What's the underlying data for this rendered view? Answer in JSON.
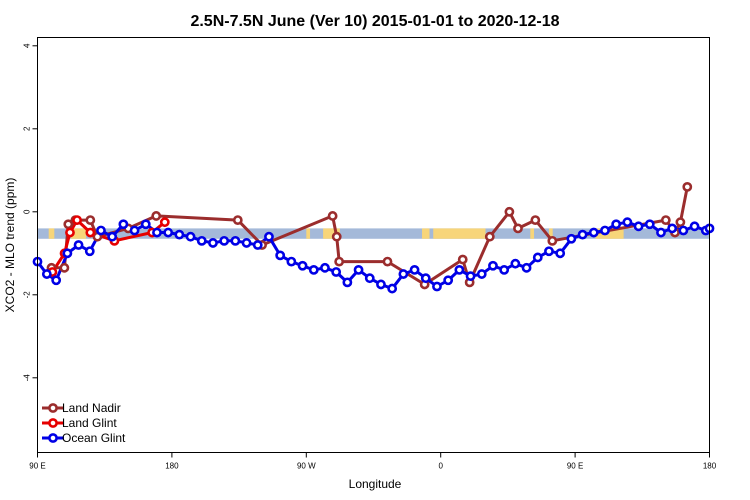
{
  "chart_data": {
    "type": "line",
    "title": "2.5N-7.5N June (Ver 10)   2015-01-01 to 2020-12-18",
    "xlabel": "Longitude",
    "ylabel": "XCO2 - MLO trend (ppm)",
    "xlim": [
      90,
      450
    ],
    "ylim": [
      -5.8,
      4.2
    ],
    "x_ticks": [
      {
        "value": 90,
        "label": "90 E"
      },
      {
        "value": 162,
        "label": "180"
      },
      {
        "value": 234,
        "label": "90 W"
      },
      {
        "value": 306,
        "label": "0"
      },
      {
        "value": 378,
        "label": "90 E"
      },
      {
        "value": 450,
        "label": "180"
      }
    ],
    "y_ticks": [
      {
        "value": -4,
        "label": "-4"
      },
      {
        "value": -2,
        "label": "-2"
      },
      {
        "value": 0,
        "label": "0"
      },
      {
        "value": 2,
        "label": "2"
      },
      {
        "value": 4,
        "label": "4"
      }
    ],
    "grid": false,
    "legend_position": "bottom-left",
    "band": {
      "ymin": -0.65,
      "ymax": -0.4,
      "color": "#a4b9d9",
      "land_color": "#f7d57a"
    },
    "land_regions": [
      [
        96,
        99
      ],
      [
        108,
        116
      ],
      [
        234,
        236
      ],
      [
        243,
        252
      ],
      [
        296,
        300
      ],
      [
        302,
        330
      ],
      [
        354,
        356
      ],
      [
        364,
        366
      ],
      [
        389,
        404
      ]
    ],
    "series": [
      {
        "name": "Land Nadir",
        "color": "#9b2d2d",
        "x": [
          97.5,
          104.4,
          106.5,
          110.3,
          118.3,
          122.1,
          138.6,
          153.6,
          197.3,
          210.3,
          248.1,
          250.3,
          251.6,
          277.5,
          297.4,
          317.8,
          321.5,
          332.3,
          342.8,
          347.4,
          356.7,
          365.8,
          426.6,
          431.5,
          434.4,
          438.1
        ],
        "y": [
          -1.35,
          -1.35,
          -0.3,
          -0.2,
          -0.2,
          -0.6,
          -0.4,
          -0.1,
          -0.2,
          -0.8,
          -0.1,
          -0.6,
          -1.2,
          -1.2,
          -1.75,
          -1.15,
          -1.7,
          -0.6,
          0.0,
          -0.4,
          -0.2,
          -0.7,
          -0.2,
          -0.5,
          -0.25,
          0.6
        ]
      },
      {
        "name": "Land Glint",
        "color": "#e60000",
        "x": [
          98.0,
          104.5,
          107.4,
          111.2,
          118.3,
          131.2,
          151.4,
          158.2
        ],
        "y": [
          -1.45,
          -1.0,
          -0.5,
          -0.2,
          -0.5,
          -0.7,
          -0.5,
          -0.25
        ]
      },
      {
        "name": "Ocean Glint",
        "color": "#0000e6",
        "x": [
          90.0,
          95.0,
          100.0,
          106.0,
          112.0,
          118.0,
          124.0,
          130.0,
          136.0,
          142.0,
          148.0,
          154.0,
          160.0,
          166.0,
          172.0,
          178.0,
          184.0,
          190.0,
          196.0,
          202.0,
          208.0,
          214.0,
          220.0,
          226.0,
          232.0,
          238.0,
          244.0,
          250.0,
          256.0,
          262.0,
          268.0,
          274.0,
          280.0,
          286.0,
          292.0,
          298.0,
          304.0,
          310.0,
          316.0,
          322.0,
          328.0,
          334.0,
          340.0,
          346.0,
          352.0,
          358.0,
          364.0,
          370.0,
          376.0,
          382.0,
          388.0,
          394.0,
          400.0,
          406.0,
          412.0,
          418.0,
          424.0,
          430.0,
          436.0,
          442.0,
          448.0,
          450.0
        ],
        "y": [
          -1.2,
          -1.5,
          -1.65,
          -1.0,
          -0.8,
          -0.95,
          -0.45,
          -0.6,
          -0.3,
          -0.45,
          -0.3,
          -0.5,
          -0.5,
          -0.55,
          -0.6,
          -0.7,
          -0.75,
          -0.7,
          -0.7,
          -0.75,
          -0.8,
          -0.6,
          -1.05,
          -1.2,
          -1.3,
          -1.4,
          -1.35,
          -1.45,
          -1.7,
          -1.4,
          -1.6,
          -1.75,
          -1.85,
          -1.5,
          -1.4,
          -1.6,
          -1.8,
          -1.65,
          -1.4,
          -1.55,
          -1.5,
          -1.3,
          -1.4,
          -1.25,
          -1.35,
          -1.1,
          -0.95,
          -1.0,
          -0.65,
          -0.55,
          -0.5,
          -0.45,
          -0.3,
          -0.25,
          -0.35,
          -0.3,
          -0.5,
          -0.4,
          -0.45,
          -0.35,
          -0.45,
          -0.4
        ]
      }
    ]
  }
}
